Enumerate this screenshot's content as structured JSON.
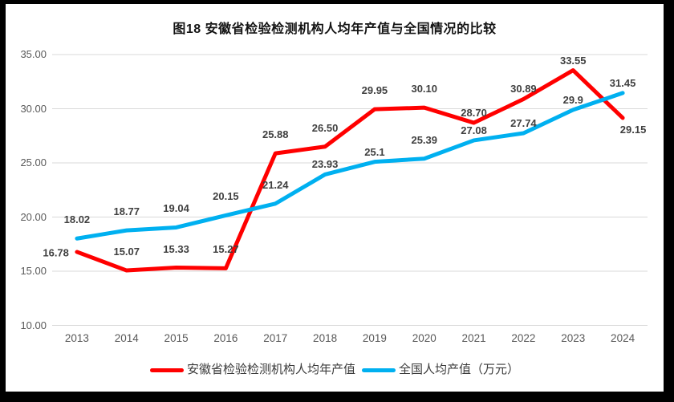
{
  "chart_data": {
    "type": "line",
    "title": "图18 安徽省检验检测机构人均年产值与全国情况的比较",
    "categories": [
      "2013",
      "2014",
      "2015",
      "2016",
      "2017",
      "2018",
      "2019",
      "2020",
      "2021",
      "2022",
      "2023",
      "2024"
    ],
    "y_axis": {
      "min": 10,
      "max": 35,
      "step": 5,
      "tick_values": [
        35,
        30,
        25,
        20,
        15,
        10
      ],
      "tick_labels": [
        "35.00",
        "30.00",
        "25.00",
        "20.00",
        "15.00",
        "10.00"
      ]
    },
    "grid": true,
    "legend_position": "bottom",
    "gridline_color": "#d9d9d9",
    "series": [
      {
        "name": "安徽省检验检测机构人均年产值",
        "color": "#FF0000",
        "values": [
          16.78,
          15.07,
          15.33,
          15.27,
          25.88,
          26.5,
          29.95,
          30.1,
          28.7,
          30.89,
          33.55,
          29.15
        ],
        "labels": [
          "16.78",
          "15.07",
          "15.33",
          "15.27",
          "25.88",
          "26.50",
          "29.95",
          "30.10",
          "28.70",
          "30.89",
          "33.55",
          "29.15"
        ],
        "label_pos": [
          "left",
          "above",
          "above",
          "above",
          "above",
          "above",
          "above",
          "above",
          "tight",
          "tight",
          "tight",
          "below"
        ]
      },
      {
        "name": "全国人均产值（万元）",
        "color": "#00B0F0",
        "values": [
          18.02,
          18.77,
          19.04,
          20.15,
          21.24,
          23.93,
          25.1,
          25.39,
          27.08,
          27.74,
          29.9,
          31.45
        ],
        "labels": [
          "18.02",
          "18.77",
          "19.04",
          "20.15",
          "21.24",
          "23.93",
          "25.1",
          "25.39",
          "27.08",
          "27.74",
          "29.9",
          "31.45"
        ],
        "label_pos": [
          "above",
          "above",
          "above",
          "above",
          "above",
          "tight",
          "tight",
          "above",
          "tight",
          "tight",
          "tight",
          "tight"
        ]
      }
    ]
  }
}
